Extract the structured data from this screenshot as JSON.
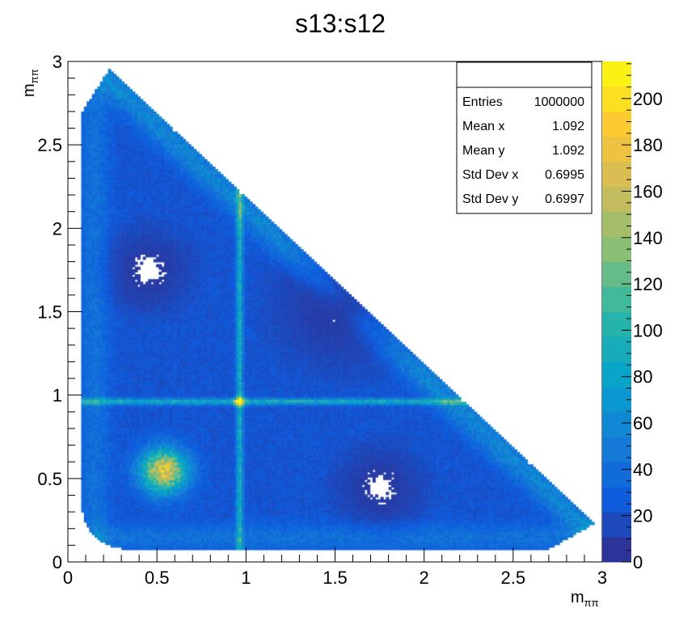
{
  "chart_data": {
    "type": "heatmap",
    "title": "s13:s12",
    "xlabel_main": "m",
    "xlabel_sub": "ππ",
    "ylabel_main": "m",
    "ylabel_sub": "ππ",
    "xlim": [
      0,
      3
    ],
    "ylim": [
      0,
      3
    ],
    "x_ticks": [
      "0",
      "0.5",
      "1",
      "1.5",
      "2",
      "2.5",
      "3"
    ],
    "y_ticks": [
      "0",
      "0.5",
      "1",
      "1.5",
      "2",
      "2.5",
      "3"
    ],
    "z_range": [
      0,
      216
    ],
    "z_ticks": [
      "0",
      "20",
      "40",
      "60",
      "80",
      "100",
      "120",
      "140",
      "160",
      "180",
      "200"
    ],
    "palette": "kBird",
    "features": {
      "bands_at": 0.965,
      "hotspot": [
        0.54,
        0.55
      ],
      "crossing": [
        0.965,
        0.965
      ]
    },
    "stats": {
      "rows": [
        {
          "label": "Entries",
          "value": "1000000"
        },
        {
          "label": "Mean x",
          "value": "1.092"
        },
        {
          "label": "Mean y",
          "value": "1.092"
        },
        {
          "label": "Std Dev x",
          "value": "0.6995"
        },
        {
          "label": "Std Dev y",
          "value": "0.6997"
        }
      ]
    }
  }
}
